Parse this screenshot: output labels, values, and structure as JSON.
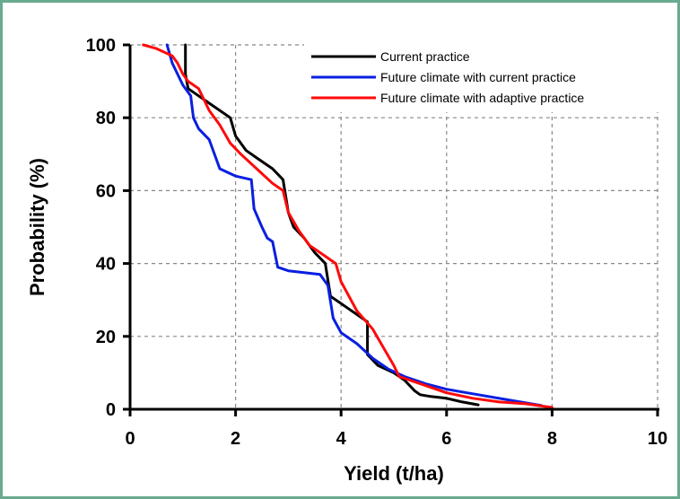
{
  "chart_data": {
    "type": "line",
    "title": "",
    "xlabel": "Yield (t/ha)",
    "ylabel": "Probability (%)",
    "xlim": [
      0,
      10
    ],
    "ylim": [
      0,
      100
    ],
    "xticks": [
      0,
      2,
      4,
      6,
      8,
      10
    ],
    "yticks": [
      0,
      20,
      40,
      60,
      80,
      100
    ],
    "grid": true,
    "legend_position": "top-right",
    "series": [
      {
        "name": "Current practice",
        "color": "#000000",
        "x": [
          1.05,
          1.05,
          1.1,
          1.3,
          1.5,
          1.7,
          1.9,
          2.0,
          2.2,
          2.4,
          2.7,
          2.9,
          3.0,
          3.1,
          3.3,
          3.5,
          3.7,
          3.8,
          3.9,
          4.1,
          4.3,
          4.5,
          4.5,
          4.7,
          5.0,
          5.2,
          5.4,
          5.5,
          5.7,
          6.0,
          6.3,
          6.6
        ],
        "y": [
          100,
          92,
          88,
          86,
          84,
          82,
          80,
          75,
          71,
          69,
          66,
          63,
          54,
          50,
          47,
          43,
          40,
          31,
          30,
          28,
          26,
          24,
          15,
          12,
          10,
          8,
          5,
          4,
          3.5,
          3,
          2,
          1.2
        ]
      },
      {
        "name": "Future climate with current practice",
        "color": "#0a1fe0",
        "x": [
          0.7,
          0.8,
          0.9,
          1.0,
          1.15,
          1.2,
          1.3,
          1.5,
          1.7,
          2.0,
          2.3,
          2.35,
          2.5,
          2.6,
          2.7,
          2.8,
          3.0,
          3.3,
          3.6,
          3.75,
          3.85,
          4.0,
          4.3,
          4.6,
          4.9,
          5.2,
          5.6,
          6.0,
          6.6,
          7.2,
          7.8
        ],
        "y": [
          100,
          95,
          92,
          89,
          86,
          80,
          77,
          74,
          66,
          64,
          63,
          55,
          50,
          47,
          46,
          39,
          38,
          37.5,
          37,
          34,
          25,
          21,
          18,
          14,
          11,
          9,
          7,
          5.5,
          4,
          2.5,
          1
        ]
      },
      {
        "name": "Future climate with adaptive practice",
        "color": "#ff0a0a",
        "x": [
          0.25,
          0.5,
          0.8,
          0.9,
          1.0,
          1.1,
          1.3,
          1.5,
          1.7,
          1.9,
          2.1,
          2.4,
          2.7,
          2.9,
          3.0,
          3.2,
          3.4,
          3.7,
          3.9,
          4.0,
          4.3,
          4.6,
          4.8,
          5.0,
          5.1,
          5.5,
          6.0,
          6.5,
          7.0,
          7.5,
          8.0
        ],
        "y": [
          100,
          99,
          97,
          95,
          92,
          90,
          88,
          82,
          78,
          73,
          70,
          66,
          62,
          60,
          54,
          49,
          45,
          42,
          40,
          35,
          27,
          22,
          17,
          12,
          9,
          7,
          4.5,
          3,
          2,
          1.5,
          0.5
        ]
      }
    ]
  }
}
